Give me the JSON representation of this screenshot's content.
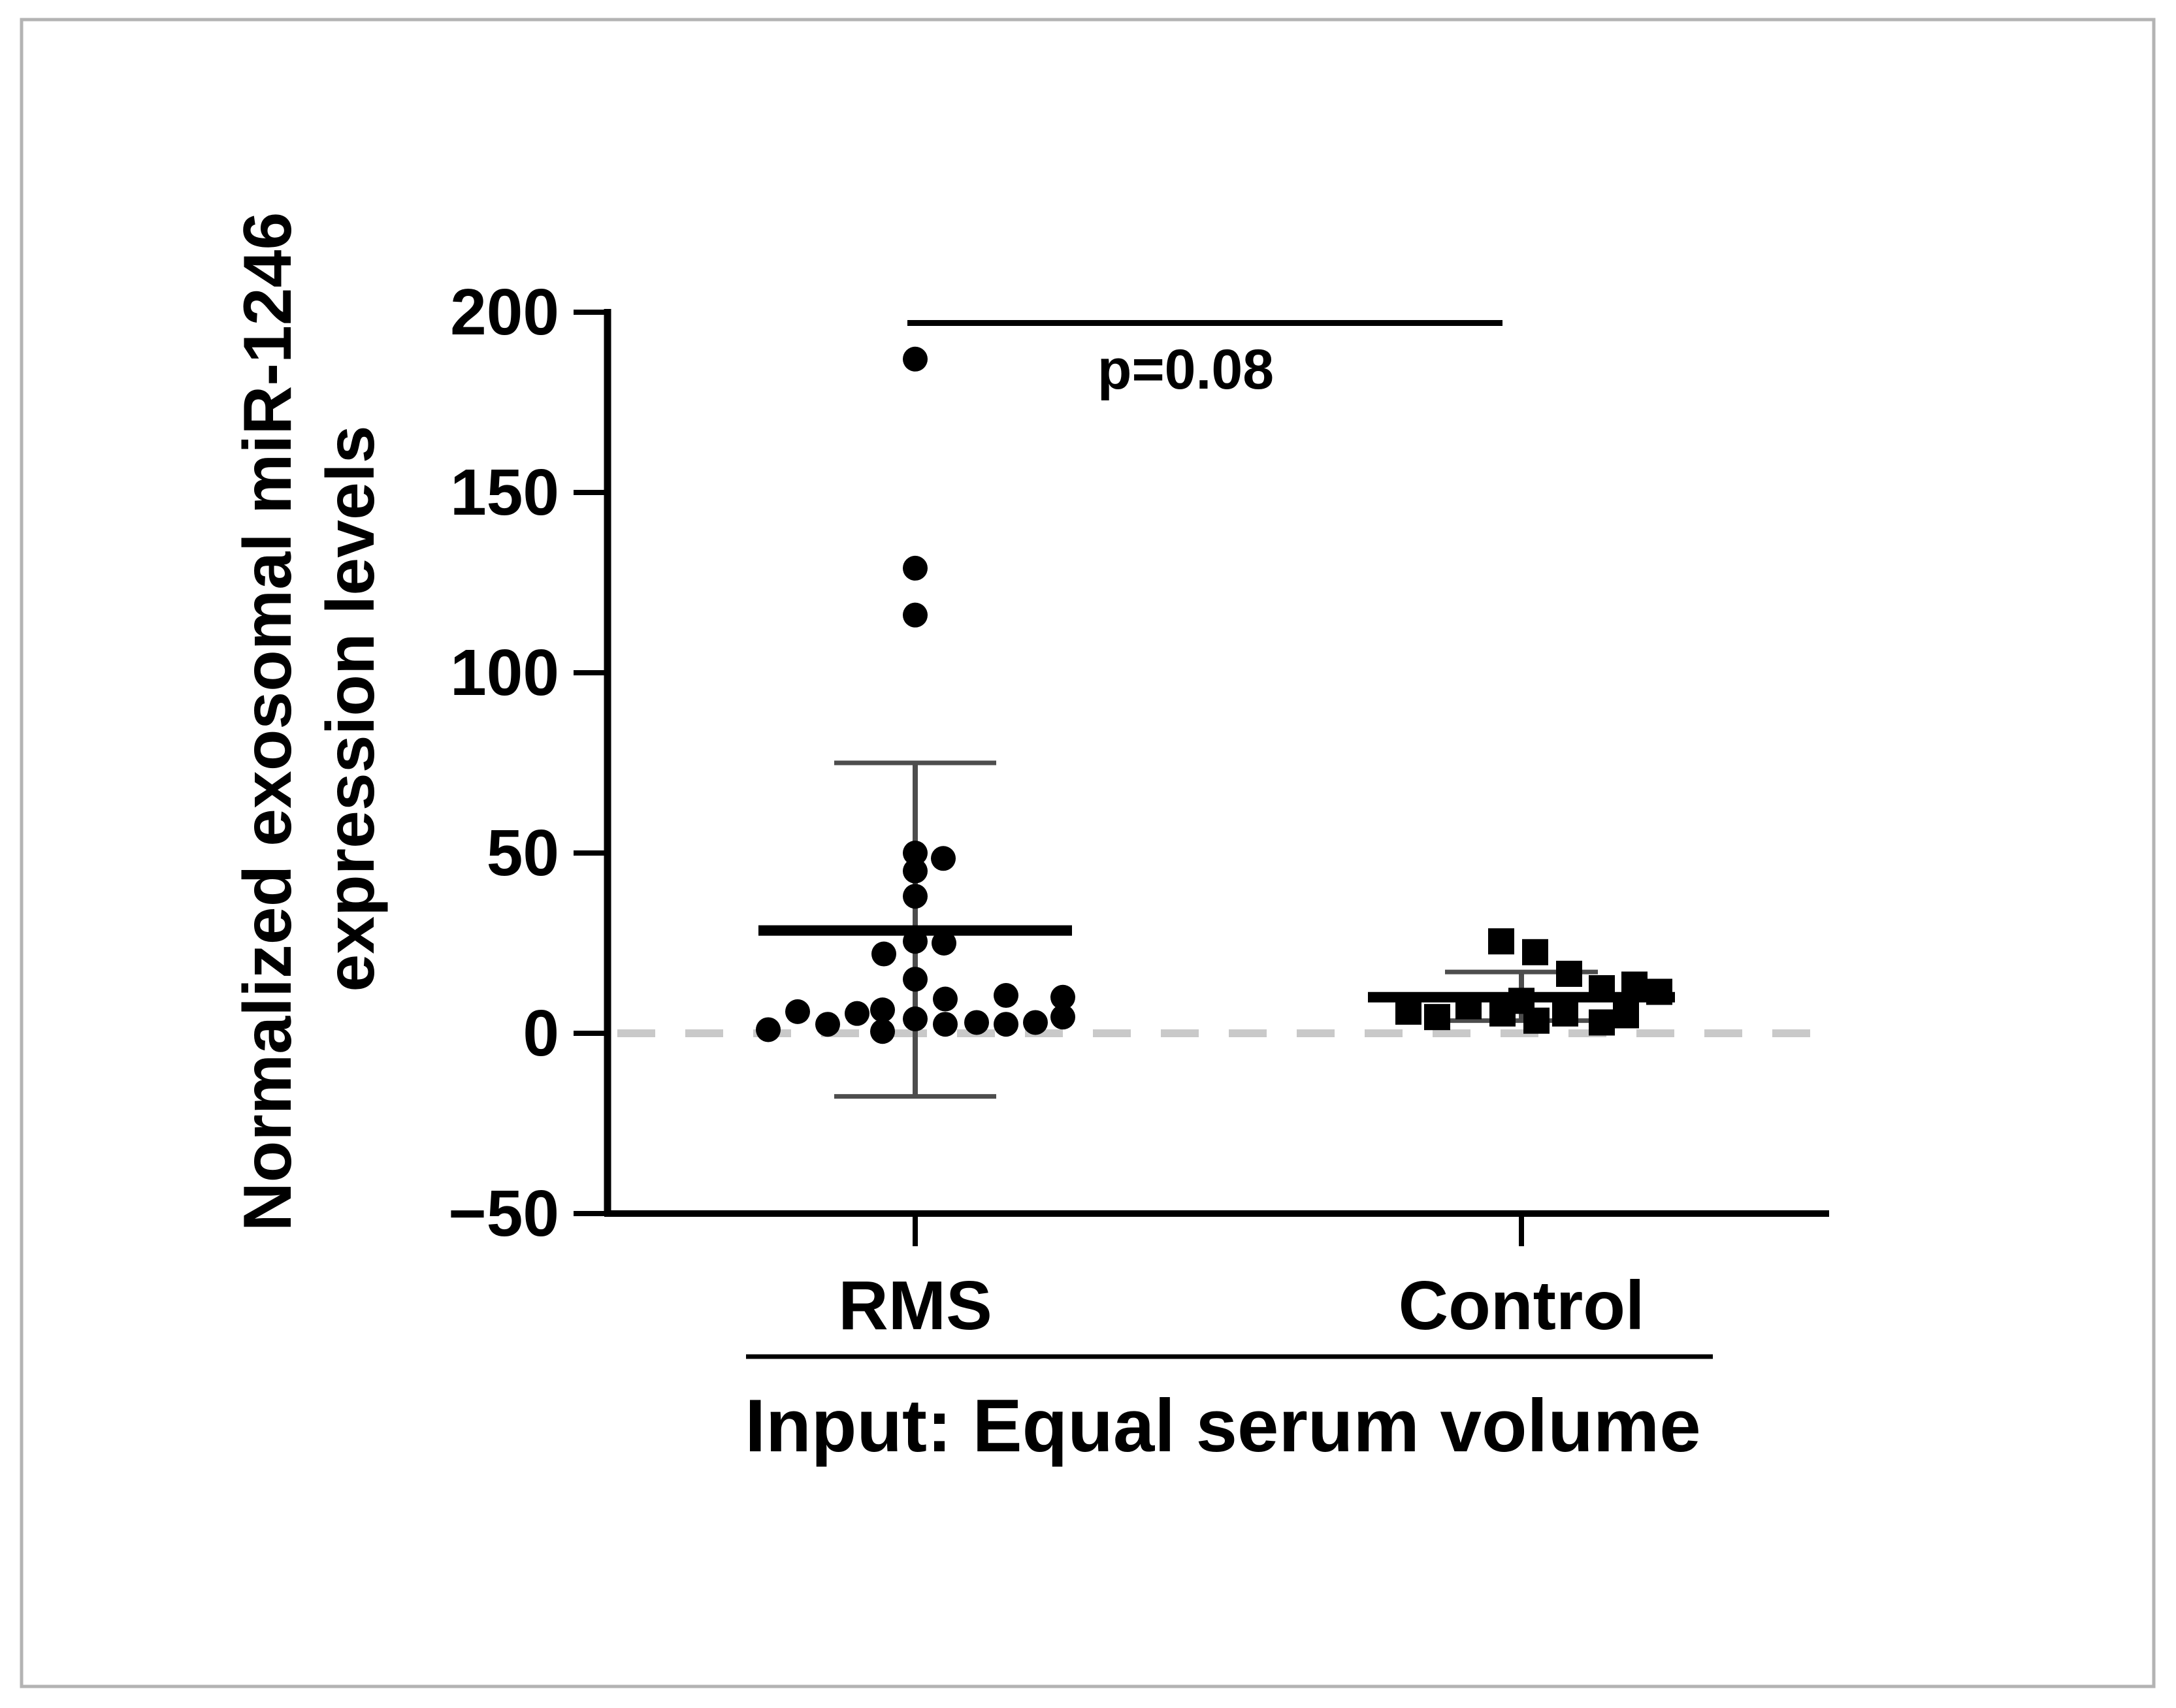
{
  "figure": {
    "border_color": "#b3b3b3",
    "background": "#ffffff",
    "foreground": "#000000",
    "error_bar_color": "#4d4d4d",
    "zero_line_color": "#c9c9c9"
  },
  "chart_data": {
    "type": "scatter",
    "title": "",
    "ylabel_line1": "Normalized exosomal miR-1246",
    "ylabel_line2": "expression levels",
    "xlabel": "Input: Equal serum volume",
    "ylim": [
      -50,
      200
    ],
    "yticks": [
      200,
      150,
      100,
      50,
      0,
      -50
    ],
    "ytick_labels": [
      "200",
      "150",
      "100",
      "50",
      "0",
      "−50"
    ],
    "grid": false,
    "zero_reference_line": 0,
    "comparison": {
      "label": "p=0.08",
      "y_value": 197,
      "between": [
        "RMS",
        "Control"
      ]
    },
    "groups": [
      {
        "name": "RMS",
        "marker": "circle",
        "mean": 28.5,
        "sd_top": 75,
        "sd_bottom": -17.5,
        "points": [
          {
            "v": 187,
            "dx": 0
          },
          {
            "v": 129,
            "dx": 0
          },
          {
            "v": 116,
            "dx": 0
          },
          {
            "v": 50,
            "dx": 0
          },
          {
            "v": 48.5,
            "dx": 43
          },
          {
            "v": 45,
            "dx": 0
          },
          {
            "v": 38,
            "dx": 0
          },
          {
            "v": 25.5,
            "dx": 0
          },
          {
            "v": 25,
            "dx": 44
          },
          {
            "v": 22,
            "dx": -48
          },
          {
            "v": 15,
            "dx": 0
          },
          {
            "v": 4,
            "dx": 0
          },
          {
            "v": 1,
            "dx": -225
          },
          {
            "v": 6,
            "dx": -180
          },
          {
            "v": 2.5,
            "dx": -134
          },
          {
            "v": 5.5,
            "dx": -89
          },
          {
            "v": 6.5,
            "dx": -50
          },
          {
            "v": 0.5,
            "dx": -50
          },
          {
            "v": 9.5,
            "dx": 46
          },
          {
            "v": 2.5,
            "dx": 46
          },
          {
            "v": 3,
            "dx": 94
          },
          {
            "v": 10.5,
            "dx": 139
          },
          {
            "v": 2.5,
            "dx": 139
          },
          {
            "v": 3,
            "dx": 184
          },
          {
            "v": 10,
            "dx": 226
          },
          {
            "v": 4.5,
            "dx": 226
          }
        ]
      },
      {
        "name": "Control",
        "marker": "square",
        "mean": 10,
        "sd_top": 17,
        "sd_bottom": 3.5,
        "points": [
          {
            "v": 25.5,
            "dx": -31
          },
          {
            "v": 22.5,
            "dx": 21
          },
          {
            "v": 16.5,
            "dx": 73
          },
          {
            "v": 12.5,
            "dx": 123
          },
          {
            "v": 13.5,
            "dx": 173
          },
          {
            "v": 11.5,
            "dx": 211
          },
          {
            "v": 9,
            "dx": 0
          },
          {
            "v": 6,
            "dx": -173
          },
          {
            "v": 4.5,
            "dx": -129
          },
          {
            "v": 7.5,
            "dx": -81
          },
          {
            "v": 5.5,
            "dx": -29
          },
          {
            "v": 3.5,
            "dx": 23
          },
          {
            "v": 5.5,
            "dx": 67
          },
          {
            "v": 3,
            "dx": 123
          },
          {
            "v": 5,
            "dx": 160
          }
        ]
      }
    ]
  }
}
